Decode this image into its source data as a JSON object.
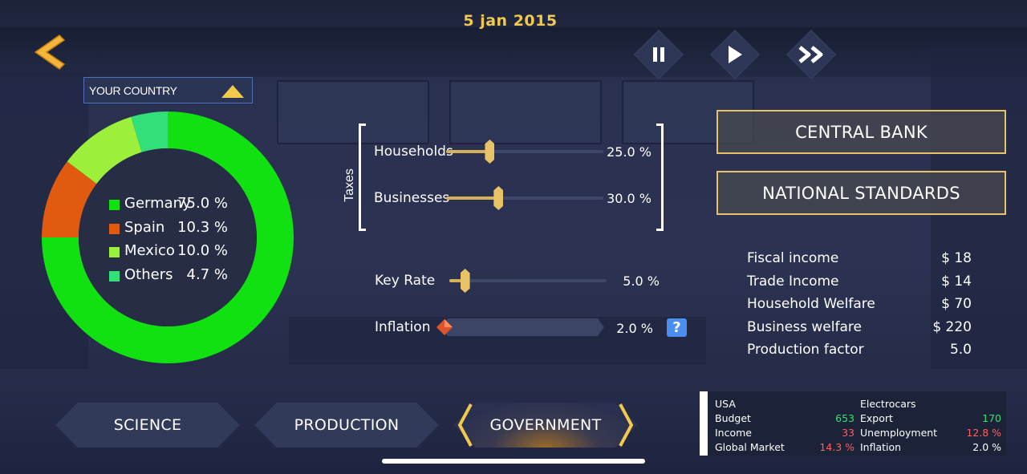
{
  "header": {
    "date": "5 jan 2015"
  },
  "icons": {
    "back": "back-arrow-icon",
    "pause": "pause-icon",
    "play": "play-icon",
    "fast_forward": "fast-forward-icon",
    "dropdown": "triangle-up-icon",
    "inflation": "gem-icon",
    "help": "question-mark-icon"
  },
  "country_select": {
    "label": "YOUR COUNTRY"
  },
  "chart_data": {
    "type": "pie",
    "categories": [
      "Germany",
      "Spain",
      "Mexico",
      "Others"
    ],
    "values": [
      75.0,
      10.3,
      10.0,
      4.7
    ],
    "value_labels": [
      "75.0 %",
      "10.3 %",
      "10.0 %",
      "4.7 %"
    ],
    "colors": [
      "#11e011",
      "#e05a10",
      "#9cf03c",
      "#32e07a"
    ],
    "donut": true,
    "legend_position": "center"
  },
  "taxes": {
    "label": "Taxes",
    "households": {
      "label": "Households",
      "value_text": "25.0 %",
      "value": 0.25
    },
    "businesses": {
      "label": "Businesses",
      "value_text": "30.0 %",
      "value": 0.3
    }
  },
  "key_rate": {
    "label": "Key Rate",
    "value_text": "5.0 %",
    "value": 0.05
  },
  "inflation": {
    "label": "Inflation",
    "value_text": "2.0 %",
    "help": "?"
  },
  "buttons": {
    "central_bank": "CENTRAL BANK",
    "national_standards": "NATIONAL STANDARDS"
  },
  "stats": [
    {
      "label": "Fiscal income",
      "value": "$ 18"
    },
    {
      "label": "Trade Income",
      "value": "$ 14"
    },
    {
      "label": "Household Welfare",
      "value": "$ 70"
    },
    {
      "label": "Business welfare",
      "value": "$ 220"
    },
    {
      "label": "Production factor",
      "value": "5.0"
    }
  ],
  "tabs": [
    {
      "label": "SCIENCE",
      "active": false
    },
    {
      "label": "PRODUCTION",
      "active": false
    },
    {
      "label": "GOVERNMENT",
      "active": true
    }
  ],
  "info_panel": {
    "country": "USA",
    "budget_label": "Budget",
    "budget_value": "653",
    "income_label": "Income",
    "income_value": "33",
    "market_label": "Global Market",
    "market_value": "14.3 %",
    "product": "Electrocars",
    "export_label": "Export",
    "export_value": "170",
    "unemployment_label": "Unemployment",
    "unemployment_value": "12.8 %",
    "inflation_label": "Inflation",
    "inflation_value": "2.0 %"
  },
  "colors": {
    "accent_gold": "#e8c267",
    "date_yellow": "#f2c94c",
    "positive_green": "#2ee66b",
    "negative_red": "#ff5f5f",
    "help_blue": "#4a8ef0"
  }
}
